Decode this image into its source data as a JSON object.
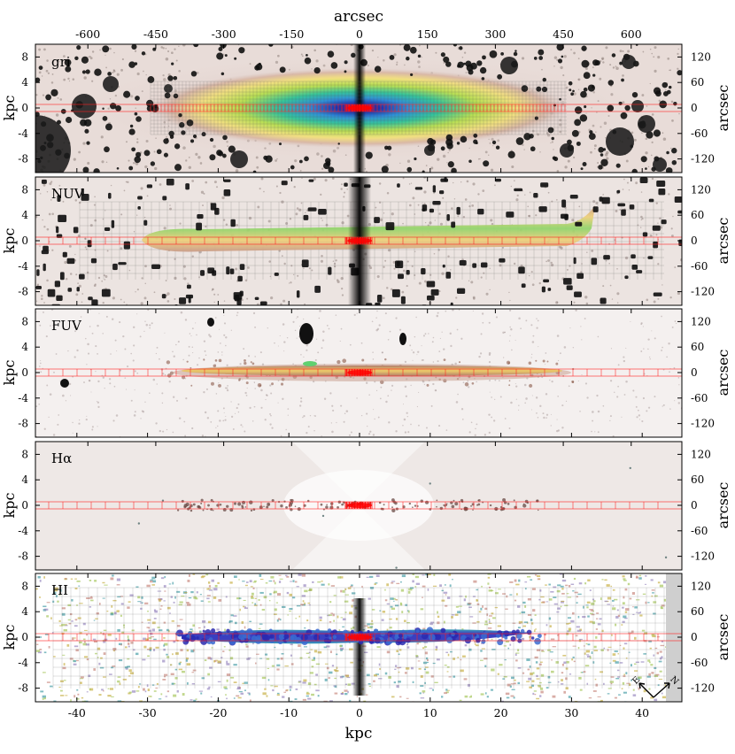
{
  "top_axis": {
    "label": "arcsec",
    "ticks": [
      "-600",
      "-450",
      "-300",
      "-150",
      "0",
      "150",
      "300",
      "450",
      "600"
    ]
  },
  "bottom_axis": {
    "label": "kpc",
    "ticks": [
      "-40",
      "-30",
      "-20",
      "-10",
      "0",
      "10",
      "20",
      "30",
      "40"
    ]
  },
  "left_axis": {
    "label": "kpc",
    "ticks": [
      "8",
      "4",
      "0",
      "-4",
      "-8"
    ]
  },
  "right_axis": {
    "label": "arcsec",
    "ticks": [
      "120",
      "60",
      "0",
      "-60",
      "-120"
    ]
  },
  "panels": [
    {
      "id": "gri",
      "label": "gri"
    },
    {
      "id": "nuv",
      "label": "NUV"
    },
    {
      "id": "fuv",
      "label": "FUV"
    },
    {
      "id": "halpha",
      "label": "Hα"
    },
    {
      "id": "hi",
      "label": "HI"
    }
  ],
  "compass": {
    "east": "E",
    "north": "N"
  },
  "colors": {
    "background": "#ffffff",
    "frame": "#000000",
    "bin_lines": "#ff2020",
    "hi_masked_strip": "#cfcfcf"
  }
}
